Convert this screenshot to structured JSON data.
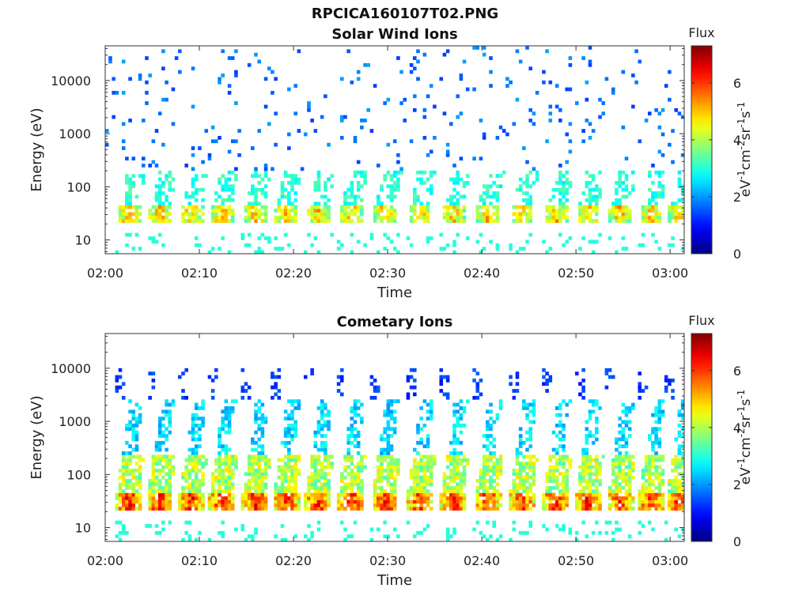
{
  "figure": {
    "title": "RPCICA160107T02.PNG"
  },
  "chart_data": [
    {
      "type": "heatmap",
      "title": "Solar Wind Ions",
      "xlabel": "Time",
      "ylabel": "Energy (eV)",
      "x_range": [
        "02:00",
        "03:01"
      ],
      "x_ticks": [
        "02:00",
        "02:10",
        "02:20",
        "02:30",
        "02:40",
        "02:50",
        "03:00"
      ],
      "y_scale": "log",
      "ylim": [
        5.5,
        45000
      ],
      "y_ticks": [
        "10",
        "100",
        "1000",
        "10000"
      ],
      "colorbar": {
        "title": "Flux",
        "label": "eV-1cm-2sr-1s-1",
        "range": [
          0,
          7.3
        ],
        "ticks": [
          "0",
          "2",
          "4",
          "6"
        ],
        "colormap": "jet"
      },
      "description_of_pattern": "sparse",
      "bursts_time_minutes": [
        2.5,
        5.8,
        9.2,
        12.4,
        15.9,
        19.2,
        22.6,
        26.1,
        29.7,
        33.4,
        37.0,
        40.6,
        44.3,
        47.9,
        51.3,
        54.7,
        58.0,
        61.0
      ],
      "peak_energy_eV": 32,
      "peak_flux": 5.6
    },
    {
      "type": "heatmap",
      "title": "Cometary Ions",
      "xlabel": "Time",
      "ylabel": "Energy (eV)",
      "x_range": [
        "02:00",
        "03:01"
      ],
      "x_ticks": [
        "02:00",
        "02:10",
        "02:20",
        "02:30",
        "02:40",
        "02:50",
        "03:00"
      ],
      "y_scale": "log",
      "ylim": [
        5.5,
        45000
      ],
      "y_ticks": [
        "10",
        "100",
        "1000",
        "10000"
      ],
      "colorbar": {
        "title": "Flux",
        "label": "eV-1cm-2sr-1s-1",
        "range": [
          0,
          7.3
        ],
        "ticks": [
          "0",
          "2",
          "4",
          "6"
        ],
        "colormap": "jet"
      },
      "description_of_pattern": "dense",
      "bursts_time_minutes": [
        2.5,
        5.8,
        9.2,
        12.4,
        15.9,
        19.2,
        22.6,
        26.1,
        29.7,
        33.4,
        37.0,
        40.6,
        44.3,
        47.9,
        51.3,
        54.7,
        58.0,
        61.0
      ],
      "peak_energy_eV": 30,
      "peak_flux": 7.0
    }
  ]
}
